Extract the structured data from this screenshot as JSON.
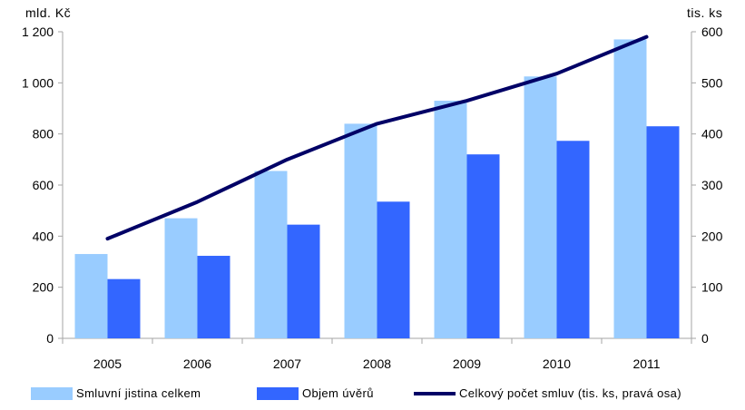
{
  "chart_data": {
    "type": "bar",
    "categories": [
      "2005",
      "2006",
      "2007",
      "2008",
      "2009",
      "2010",
      "2011"
    ],
    "series": [
      {
        "name": "Smluvní jistina celkem",
        "type": "bar",
        "axis": "left",
        "color": "#99ccff",
        "values": [
          330,
          470,
          655,
          840,
          930,
          1025,
          1170
        ]
      },
      {
        "name": "Objem úvěrů",
        "type": "bar",
        "axis": "left",
        "color": "#3366ff",
        "values": [
          232,
          323,
          445,
          535,
          720,
          773,
          830
        ]
      },
      {
        "name": "Celkový počet smluv (tis. ks, pravá osa)",
        "type": "line",
        "axis": "right",
        "color": "#000066",
        "values": [
          195,
          267,
          350,
          420,
          465,
          518,
          590
        ]
      }
    ],
    "left_axis": {
      "unit_label": "mld. Kč",
      "ylim": [
        0,
        1200
      ],
      "ticks": [
        0,
        200,
        400,
        600,
        800,
        1000,
        1200
      ],
      "tick_labels": [
        "0",
        "200",
        "400",
        "600",
        "800",
        "1 000",
        "1 200"
      ]
    },
    "right_axis": {
      "unit_label": "tis. ks",
      "ylim": [
        0,
        600
      ],
      "ticks": [
        0,
        100,
        200,
        300,
        400,
        500,
        600
      ],
      "tick_labels": [
        "0",
        "100",
        "200",
        "300",
        "400",
        "500",
        "600"
      ]
    },
    "grid": false,
    "legend_position": "bottom"
  }
}
